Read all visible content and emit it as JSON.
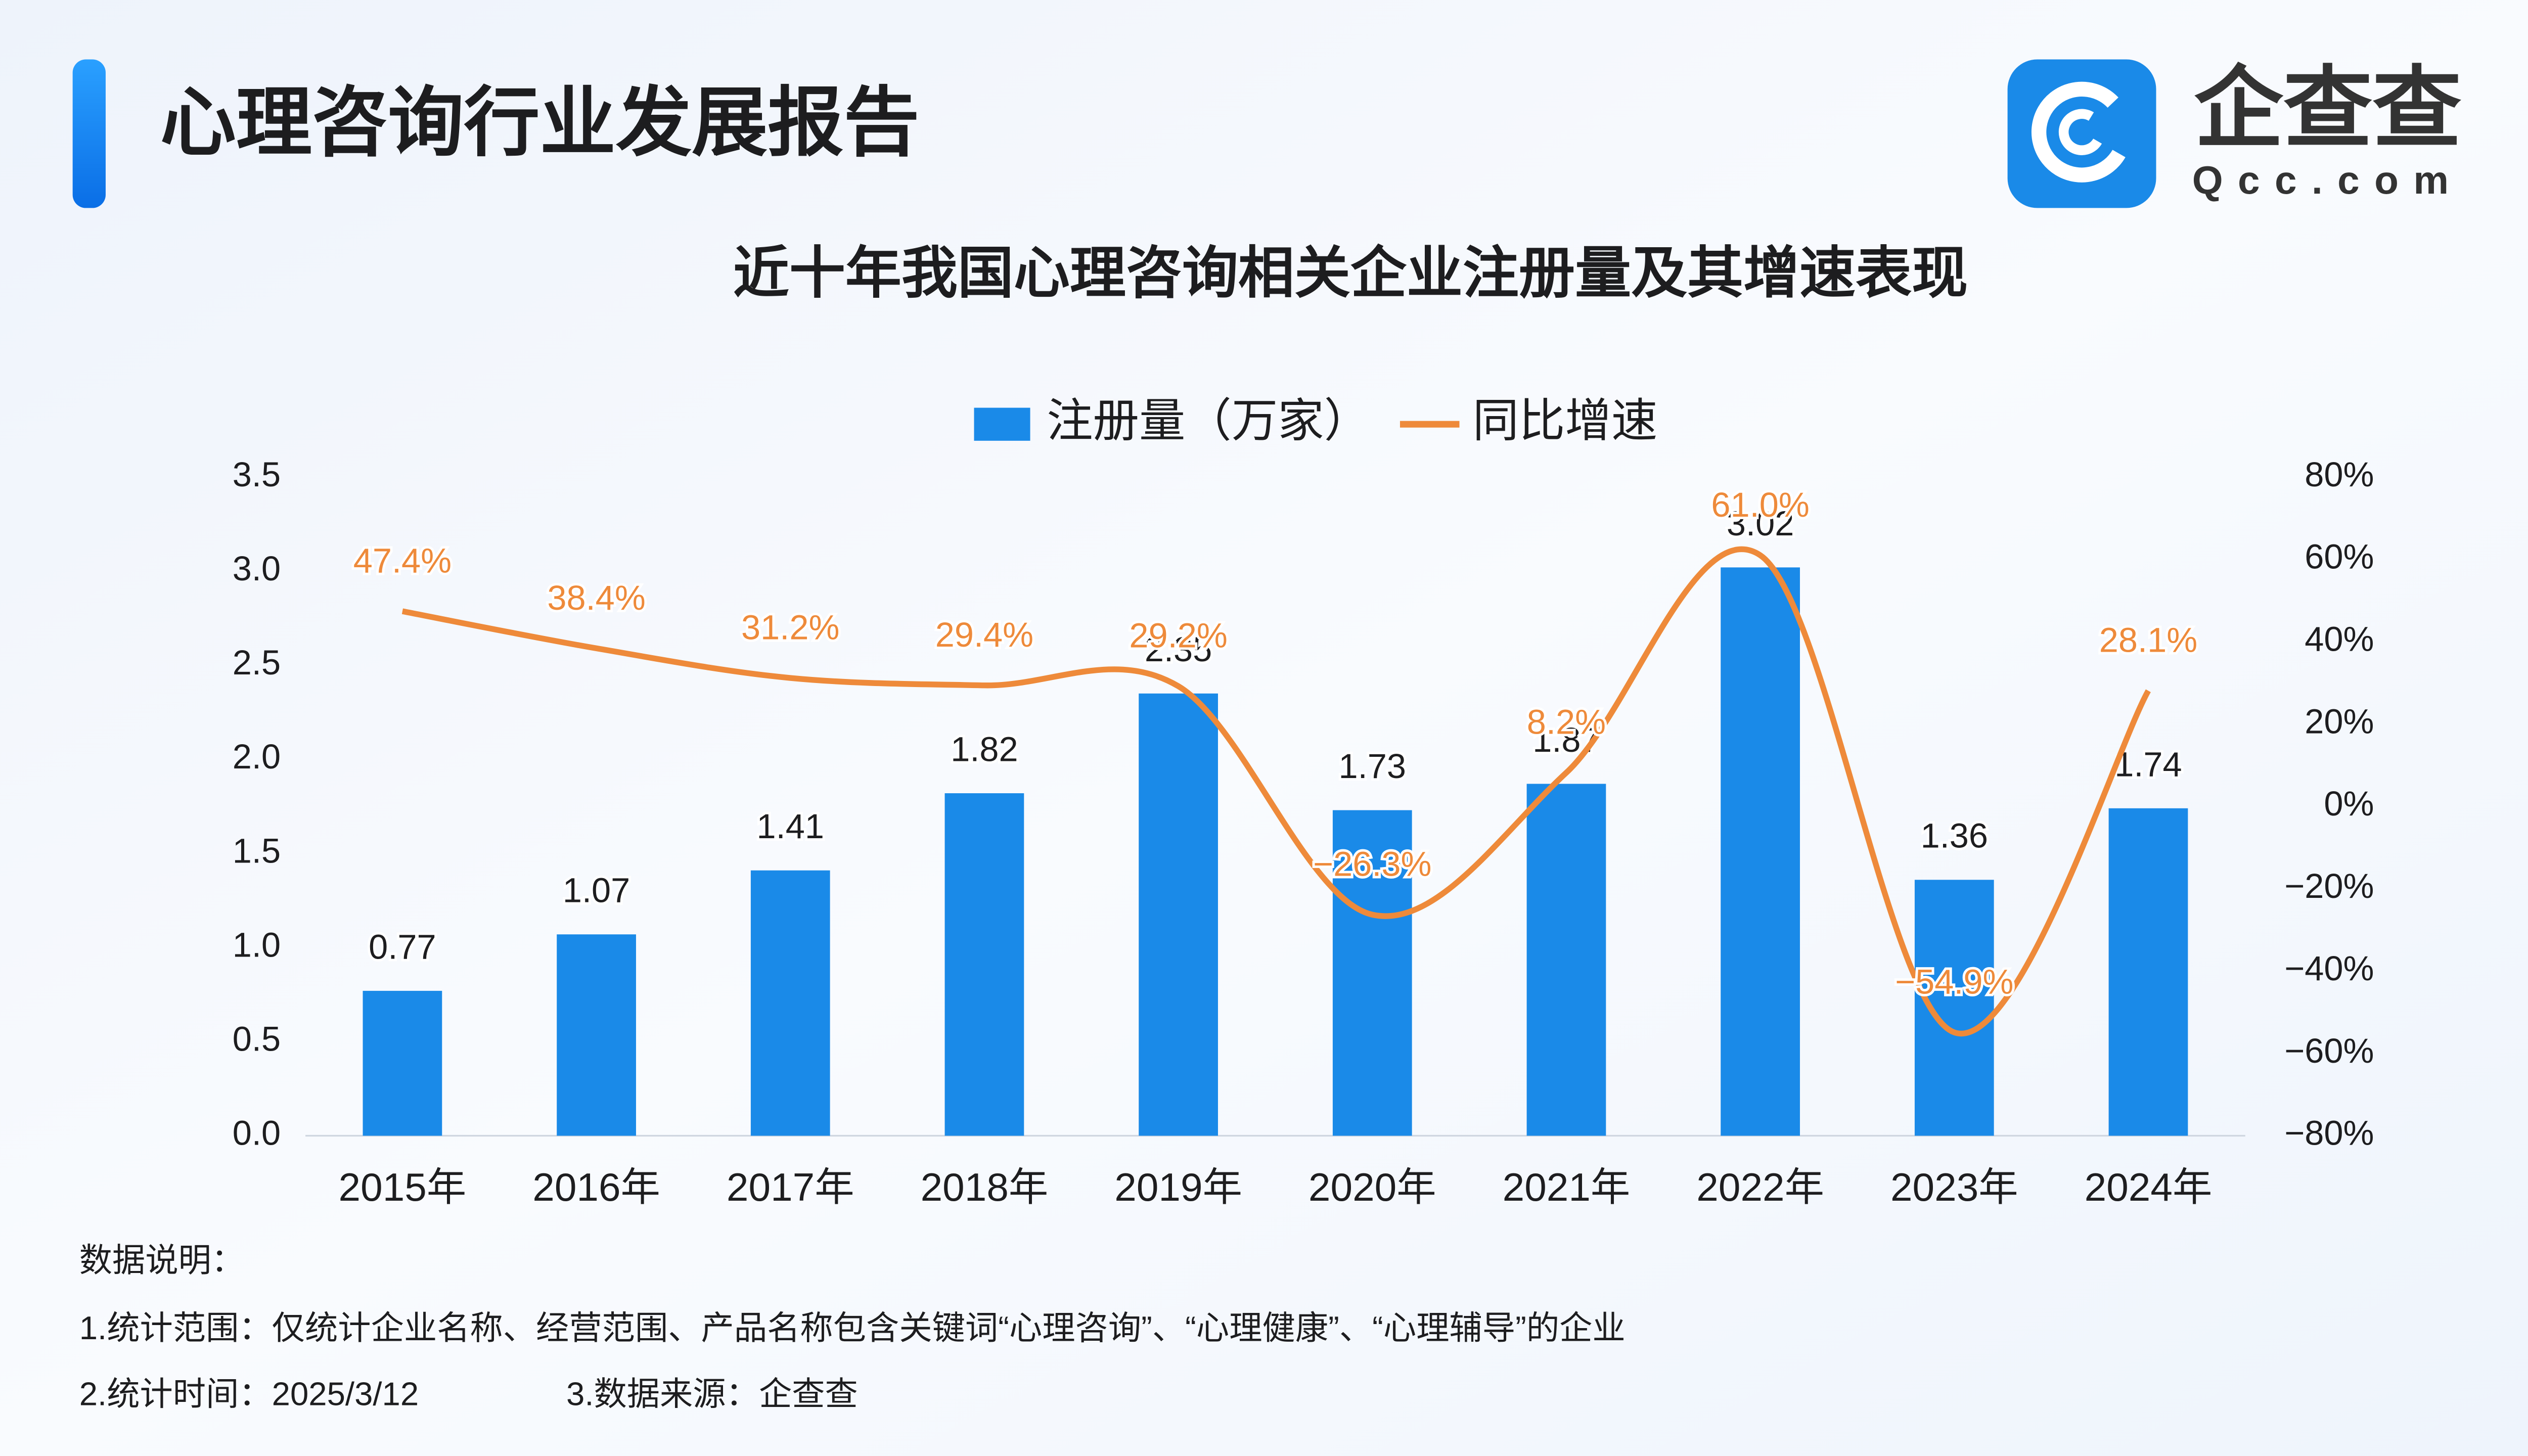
{
  "header": {
    "title": "心理咨询行业发展报告",
    "logo_text": "企查查",
    "logo_url": "Qcc.com"
  },
  "chart_data": {
    "type": "bar-line",
    "title": "近十年我国心理咨询相关企业注册量及其增速表现",
    "categories": [
      "2015年",
      "2016年",
      "2017年",
      "2018年",
      "2019年",
      "2020年",
      "2021年",
      "2022年",
      "2023年",
      "2024年"
    ],
    "series": [
      {
        "name": "注册量（万家）",
        "type": "bar",
        "color": "#1a8ae8",
        "values": [
          0.77,
          1.07,
          1.41,
          1.82,
          2.35,
          1.73,
          1.87,
          3.02,
          1.36,
          1.74
        ]
      },
      {
        "name": "同比增速",
        "type": "line",
        "axis": "y2",
        "color": "#ee8a3a",
        "values": [
          47.4,
          38.4,
          31.2,
          29.4,
          29.2,
          -26.3,
          8.2,
          61.0,
          -54.9,
          28.1
        ],
        "value_labels": [
          "47.4%",
          "38.4%",
          "31.2%",
          "29.4%",
          "29.2%",
          "−26.3%",
          "8.2%",
          "61.0%",
          "−54.9%",
          "28.1%"
        ]
      }
    ],
    "ylim": [
      0,
      3.5
    ],
    "yticks": [
      {
        "value": 0,
        "label": "0.0"
      },
      0.5,
      {
        "value": 1,
        "label": "1.0"
      },
      1.5,
      {
        "value": 2,
        "label": "2.0"
      },
      2.5,
      {
        "value": 3,
        "label": "3.0"
      },
      3.5
    ],
    "y2lim": [
      -80,
      80
    ],
    "y2ticks": [
      {
        "value": -80,
        "label": "−80%"
      },
      {
        "value": -60,
        "label": "−60%"
      },
      {
        "value": -40,
        "label": "−40%"
      },
      {
        "value": -20,
        "label": "−20%"
      },
      {
        "value": 0,
        "label": "0%"
      },
      {
        "value": 20,
        "label": "20%"
      },
      {
        "value": 40,
        "label": "40%"
      },
      {
        "value": 60,
        "label": "60%"
      },
      {
        "value": 80,
        "label": "80%"
      }
    ],
    "legend": "top"
  },
  "notes": {
    "label": "数据说明：",
    "items": [
      "1.统计范围：仅统计企业名称、经营范围、产品名称包含关键词“心理咨询”、“心理健康”、“心理辅导”的企业",
      "2.统计时间：2025/3/12",
      "3.数据来源：企查查"
    ]
  }
}
